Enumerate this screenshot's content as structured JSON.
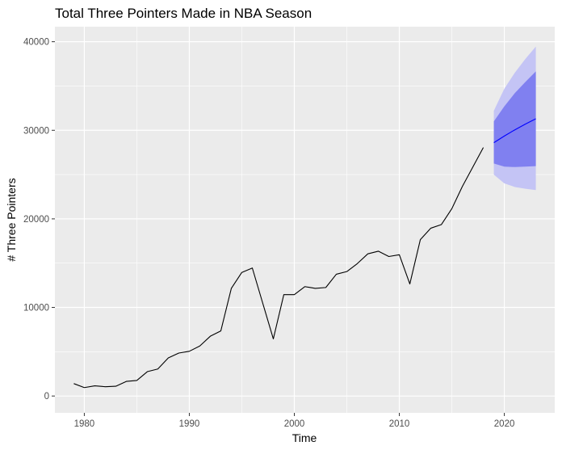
{
  "chart_data": {
    "type": "line",
    "title": "Total Three Pointers Made in NBA Season",
    "xlabel": "Time",
    "ylabel": "# Three Pointers",
    "xlim": [
      1977.2,
      2024.8
    ],
    "ylim": [
      -1900,
      41700
    ],
    "x_ticks": [
      1980,
      1990,
      2000,
      2010,
      2020
    ],
    "x_tick_labels": [
      "1980",
      "1990",
      "2000",
      "2010",
      "2020"
    ],
    "y_ticks": [
      0,
      10000,
      20000,
      30000,
      40000
    ],
    "y_tick_labels": [
      "0",
      "10000",
      "20000",
      "30000",
      "40000"
    ],
    "grid": true,
    "series": [
      {
        "x": [
          1979,
          1980,
          1981,
          1982,
          1983,
          1984,
          1985,
          1986,
          1987,
          1988,
          1989,
          1990,
          1991,
          1992,
          1993,
          1994,
          1995,
          1996,
          1997,
          1998,
          1999,
          2000,
          2001,
          2002,
          2003,
          2004,
          2005,
          2006,
          2007,
          2008,
          2009,
          2010,
          2011,
          2012,
          2013,
          2014,
          2015,
          2016,
          2017,
          2018
        ],
        "values": [
          1400,
          950,
          1150,
          1050,
          1100,
          1650,
          1750,
          2750,
          3050,
          4300,
          4850,
          5050,
          5650,
          6750,
          7350,
          12150,
          13950,
          14450,
          10450,
          6450,
          11450,
          11450,
          12350,
          12150,
          12250,
          13750,
          14050,
          14950,
          16050,
          16350,
          15750,
          15950,
          12650,
          17650,
          18950,
          19350,
          21150,
          23650,
          25850,
          28050
        ],
        "color": "#000000"
      },
      {
        "x": [
          2019,
          2020,
          2021,
          2022,
          2023
        ],
        "values": [
          28600,
          29350,
          30050,
          30700,
          31300
        ],
        "color": "#0000ff",
        "band_80": {
          "lower": [
            26250,
            25900,
            25850,
            25900,
            25950
          ],
          "upper": [
            31000,
            32700,
            34200,
            35450,
            36650
          ],
          "color": "#8080f0"
        },
        "band_95": {
          "lower": [
            25000,
            24000,
            23600,
            23400,
            23250
          ],
          "upper": [
            32200,
            34700,
            36500,
            38050,
            39450
          ],
          "color": "#c4c4f5"
        }
      }
    ],
    "colors": {
      "panel_background": "#ebebeb",
      "grid": "#ffffff"
    }
  }
}
